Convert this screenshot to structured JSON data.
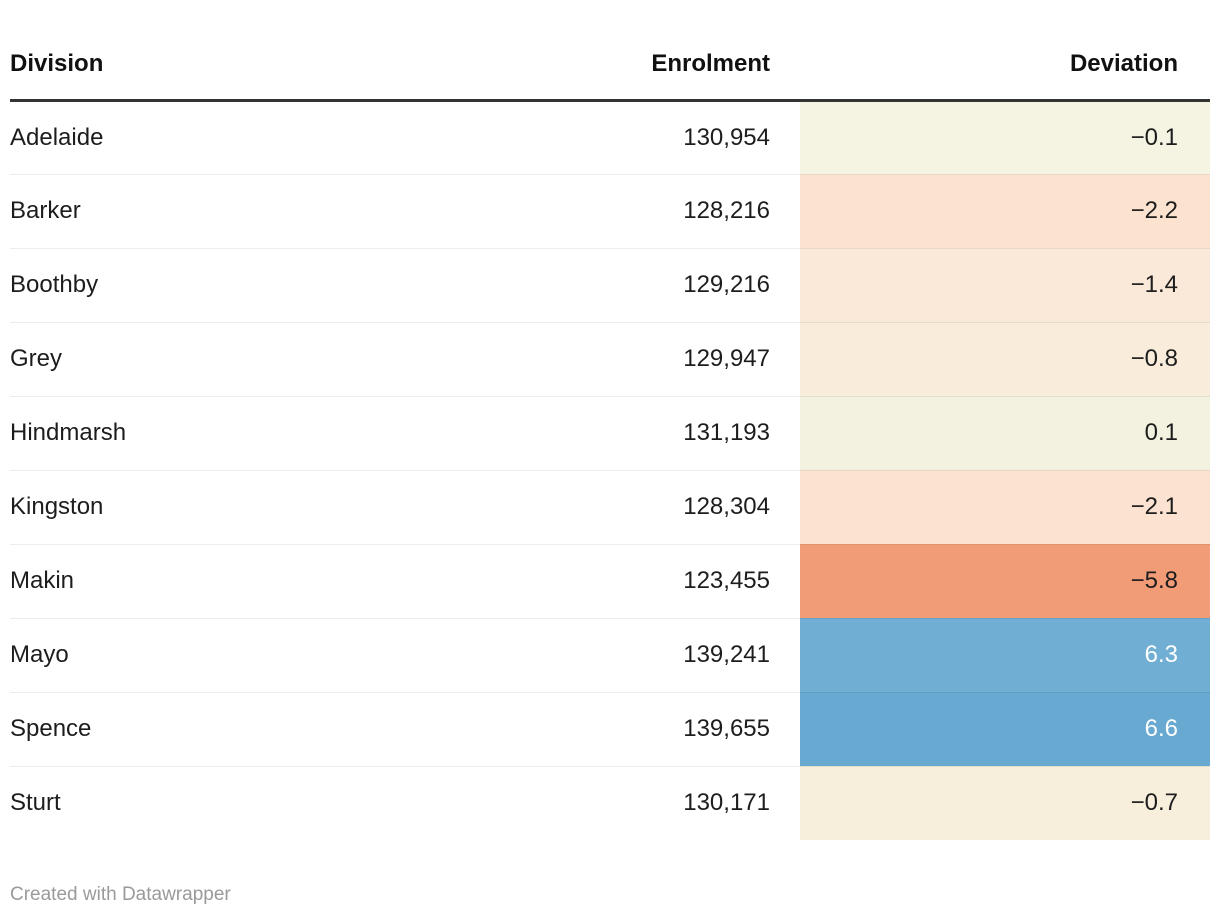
{
  "chart_data": {
    "type": "table",
    "title": "",
    "columns": [
      "Division",
      "Enrolment",
      "Deviation"
    ],
    "rows": [
      [
        "Adelaide",
        130954,
        -0.1
      ],
      [
        "Barker",
        128216,
        -2.2
      ],
      [
        "Boothby",
        129216,
        -1.4
      ],
      [
        "Grey",
        129947,
        -0.8
      ],
      [
        "Hindmarsh",
        131193,
        0.1
      ],
      [
        "Kingston",
        128304,
        -2.1
      ],
      [
        "Makin",
        123455,
        -5.8
      ],
      [
        "Mayo",
        139241,
        6.3
      ],
      [
        "Spence",
        139655,
        6.6
      ],
      [
        "Sturt",
        130171,
        -0.7
      ]
    ],
    "heatmap_column": "Deviation",
    "layout_hints": {
      "enrolment_format": "thousands comma",
      "deviation_scale": "diverging orange (negative) to blue (positive)",
      "grid": "horizontal row dividers only"
    }
  },
  "table": {
    "headers": {
      "division": "Division",
      "enrolment": "Enrolment",
      "deviation": "Deviation"
    },
    "rows": [
      {
        "division": "Adelaide",
        "enrolment": "130,954",
        "deviation": "−0.1",
        "cell_bg": "#f5f3e2",
        "cell_fg": "#1d1d1d"
      },
      {
        "division": "Barker",
        "enrolment": "128,216",
        "deviation": "−2.2",
        "cell_bg": "#fce3d0",
        "cell_fg": "#1d1d1d"
      },
      {
        "division": "Boothby",
        "enrolment": "129,216",
        "deviation": "−1.4",
        "cell_bg": "#fae8d8",
        "cell_fg": "#1d1d1d"
      },
      {
        "division": "Grey",
        "enrolment": "129,947",
        "deviation": "−0.8",
        "cell_bg": "#f9ecdb",
        "cell_fg": "#1d1d1d"
      },
      {
        "division": "Hindmarsh",
        "enrolment": "131,193",
        "deviation": "0.1",
        "cell_bg": "#f3f2e0",
        "cell_fg": "#1d1d1d"
      },
      {
        "division": "Kingston",
        "enrolment": "128,304",
        "deviation": "−2.1",
        "cell_bg": "#fce3d1",
        "cell_fg": "#1d1d1d"
      },
      {
        "division": "Makin",
        "enrolment": "123,455",
        "deviation": "−5.8",
        "cell_bg": "#f19c77",
        "cell_fg": "#1d1d1d"
      },
      {
        "division": "Mayo",
        "enrolment": "139,241",
        "deviation": "6.3",
        "cell_bg": "#70aed4",
        "cell_fg": "#ffffff"
      },
      {
        "division": "Spence",
        "enrolment": "139,655",
        "deviation": "6.6",
        "cell_bg": "#67a9d1",
        "cell_fg": "#ffffff"
      },
      {
        "division": "Sturt",
        "enrolment": "130,171",
        "deviation": "−0.7",
        "cell_bg": "#f7efdb",
        "cell_fg": "#1d1d1d"
      }
    ]
  },
  "footer": {
    "attribution": "Created with Datawrapper"
  },
  "colors": {
    "background": "#ffffff",
    "header_border": "#333333",
    "row_divider": "rgba(0,0,0,0.07)",
    "body_text": "#1d1d1d",
    "footer_text": "#9a9a9a",
    "negative_strong": "#f19c77",
    "positive_strong": "#67a9d1"
  }
}
